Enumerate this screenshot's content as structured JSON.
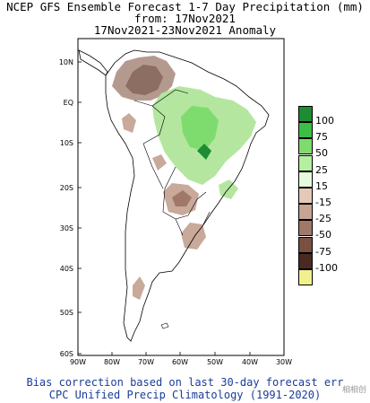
{
  "title": {
    "line1": "NCEP GFS Ensemble Forecast 1-7 Day Precipitation (mm)",
    "line2": "from: 17Nov2021",
    "line3": "17Nov2021-23Nov2021 Anomaly"
  },
  "map": {
    "region": "South America",
    "lat_labels": [
      "10N",
      "EQ",
      "10S",
      "20S",
      "30S",
      "40S",
      "50S",
      "60S"
    ],
    "lon_labels": [
      "90W",
      "80W",
      "70W",
      "60W",
      "50W",
      "40W",
      "30W"
    ],
    "wet_anomaly_color": "#b4e6a0",
    "dry_anomaly_color": "#c8a99a"
  },
  "legend": {
    "items": [
      {
        "label": "100",
        "color": "#1e8c32"
      },
      {
        "label": "75",
        "color": "#3cbe46"
      },
      {
        "label": "50",
        "color": "#7edc6e"
      },
      {
        "label": "25",
        "color": "#b4f0a0"
      },
      {
        "label": "15",
        "color": "#e6fadc"
      },
      {
        "label": "-15",
        "color": "#e6c8b8"
      },
      {
        "label": "-25",
        "color": "#c8a494"
      },
      {
        "label": "-50",
        "color": "#a07868"
      },
      {
        "label": "-75",
        "color": "#7a5040"
      },
      {
        "label": "-100",
        "color": "#4a2a20"
      },
      {
        "label": "",
        "color": "#f0f08c"
      }
    ]
  },
  "footer": {
    "line1": "Bias correction based on last 30-day forecast err",
    "line2": "CPC Unified Precip Climatology (1991-2020)"
  },
  "watermark": "相相创"
}
